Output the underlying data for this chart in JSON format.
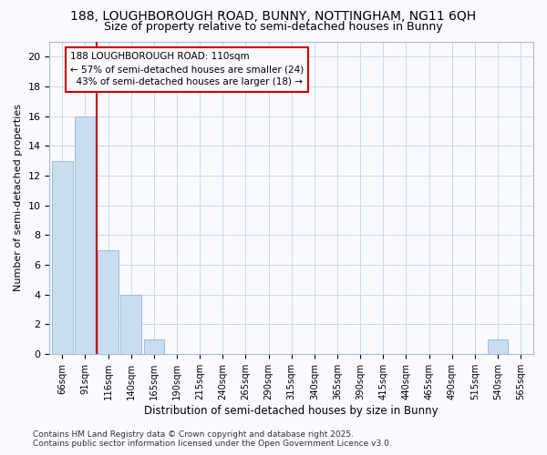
{
  "title": "188, LOUGHBOROUGH ROAD, BUNNY, NOTTINGHAM, NG11 6QH",
  "subtitle": "Size of property relative to semi-detached houses in Bunny",
  "xlabel": "Distribution of semi-detached houses by size in Bunny",
  "ylabel": "Number of semi-detached properties",
  "bar_color": "#c8ddf0",
  "bar_edge_color": "#9bbcd8",
  "annotation_line_color": "#cc0000",
  "categories": [
    "66sqm",
    "91sqm",
    "116sqm",
    "140sqm",
    "165sqm",
    "190sqm",
    "215sqm",
    "240sqm",
    "265sqm",
    "290sqm",
    "315sqm",
    "340sqm",
    "365sqm",
    "390sqm",
    "415sqm",
    "440sqm",
    "465sqm",
    "490sqm",
    "515sqm",
    "540sqm",
    "565sqm"
  ],
  "values": [
    13,
    16,
    7,
    4,
    1,
    0,
    0,
    0,
    0,
    0,
    0,
    0,
    0,
    0,
    0,
    0,
    0,
    0,
    0,
    1,
    0
  ],
  "property_label": "188 LOUGHBOROUGH ROAD: 110sqm",
  "pct_smaller": 57,
  "pct_larger": 43,
  "count_smaller": 24,
  "count_larger": 18,
  "ylim": [
    0,
    21
  ],
  "yticks": [
    0,
    2,
    4,
    6,
    8,
    10,
    12,
    14,
    16,
    18,
    20
  ],
  "footer_line1": "Contains HM Land Registry data © Crown copyright and database right 2025.",
  "footer_line2": "Contains public sector information licensed under the Open Government Licence v3.0.",
  "background_color": "#f8faff",
  "grid_color": "#c8d8ec"
}
